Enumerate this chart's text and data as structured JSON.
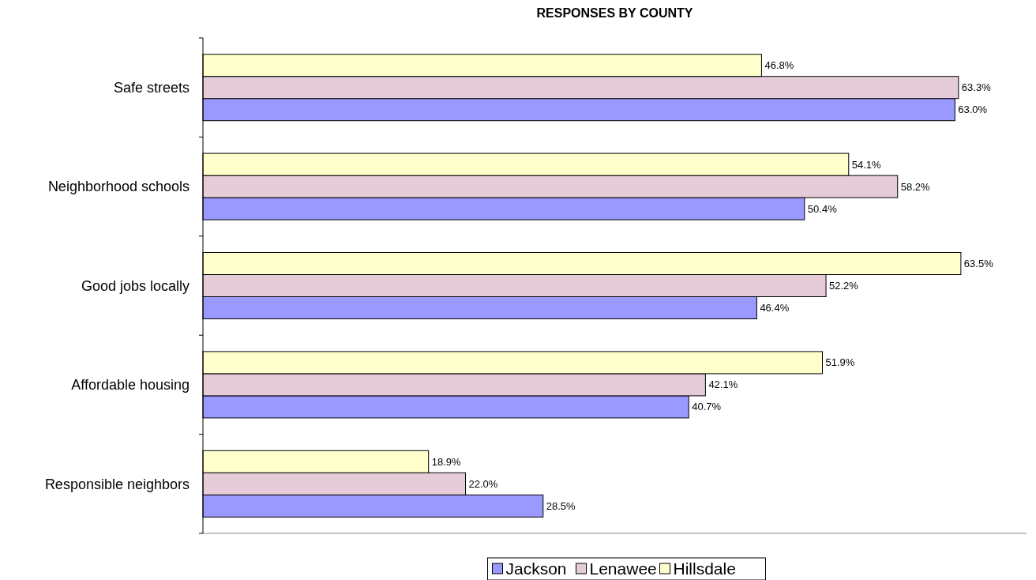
{
  "chart_data": {
    "type": "bar",
    "orientation": "horizontal",
    "title": "RESPONSES BY COUNTY",
    "categories": [
      "Safe streets",
      "Neighborhood schools",
      "Good jobs locally",
      "Affordable housing",
      "Responsible neighbors"
    ],
    "xlim": [
      0,
      69
    ],
    "legend": "bottom",
    "series": [
      {
        "name": "Jackson",
        "color": "#9999ff",
        "values": [
          63.0,
          50.4,
          46.4,
          40.7,
          28.5
        ],
        "value_labels": [
          "63.0%",
          "50.4%",
          "46.4%",
          "40.7%",
          "28.5%"
        ]
      },
      {
        "name": "Lenawee",
        "color": "#e6ccd9",
        "values": [
          63.3,
          58.2,
          52.2,
          42.1,
          22.0
        ],
        "value_labels": [
          "63.3%",
          "58.2%",
          "52.2%",
          "42.1%",
          "22.0%"
        ]
      },
      {
        "name": "Hillsdale",
        "color": "#ffffcc",
        "values": [
          46.8,
          54.1,
          63.5,
          51.9,
          18.9
        ],
        "value_labels": [
          "46.8%",
          "54.1%",
          "63.5%",
          "51.9%",
          "18.9%"
        ]
      }
    ]
  }
}
